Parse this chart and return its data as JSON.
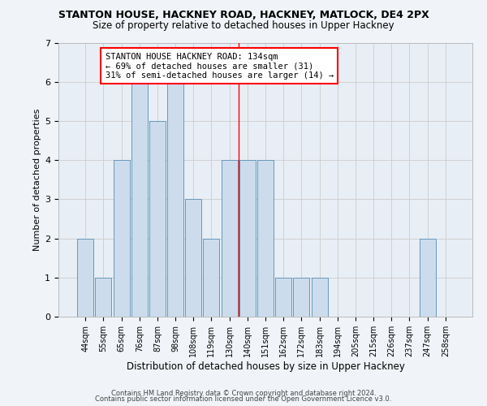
{
  "title": "STANTON HOUSE, HACKNEY ROAD, HACKNEY, MATLOCK, DE4 2PX",
  "subtitle": "Size of property relative to detached houses in Upper Hackney",
  "xlabel": "Distribution of detached houses by size in Upper Hackney",
  "ylabel": "Number of detached properties",
  "categories": [
    "44sqm",
    "55sqm",
    "65sqm",
    "76sqm",
    "87sqm",
    "98sqm",
    "108sqm",
    "119sqm",
    "130sqm",
    "140sqm",
    "151sqm",
    "162sqm",
    "172sqm",
    "183sqm",
    "194sqm",
    "205sqm",
    "215sqm",
    "226sqm",
    "237sqm",
    "247sqm",
    "258sqm"
  ],
  "values": [
    2,
    1,
    4,
    6,
    5,
    6,
    3,
    2,
    4,
    4,
    4,
    1,
    1,
    1,
    0,
    0,
    0,
    0,
    0,
    2,
    0
  ],
  "bar_color": "#ccdcec",
  "bar_edge_color": "#6699bb",
  "grid_color": "#cccccc",
  "background_color": "#e8eef5",
  "fig_background_color": "#f0f4f8",
  "red_line_x": 8.5,
  "annotation_text": "STANTON HOUSE HACKNEY ROAD: 134sqm\n← 69% of detached houses are smaller (31)\n31% of semi-detached houses are larger (14) →",
  "ylim": [
    0,
    7
  ],
  "yticks": [
    0,
    1,
    2,
    3,
    4,
    5,
    6,
    7
  ],
  "footer1": "Contains HM Land Registry data © Crown copyright and database right 2024.",
  "footer2": "Contains public sector information licensed under the Open Government Licence v3.0.",
  "title_fontsize": 9,
  "subtitle_fontsize": 8.5,
  "xlabel_fontsize": 8.5,
  "ylabel_fontsize": 8,
  "annotation_fontsize": 7.5,
  "tick_fontsize": 7,
  "footer_fontsize": 6
}
